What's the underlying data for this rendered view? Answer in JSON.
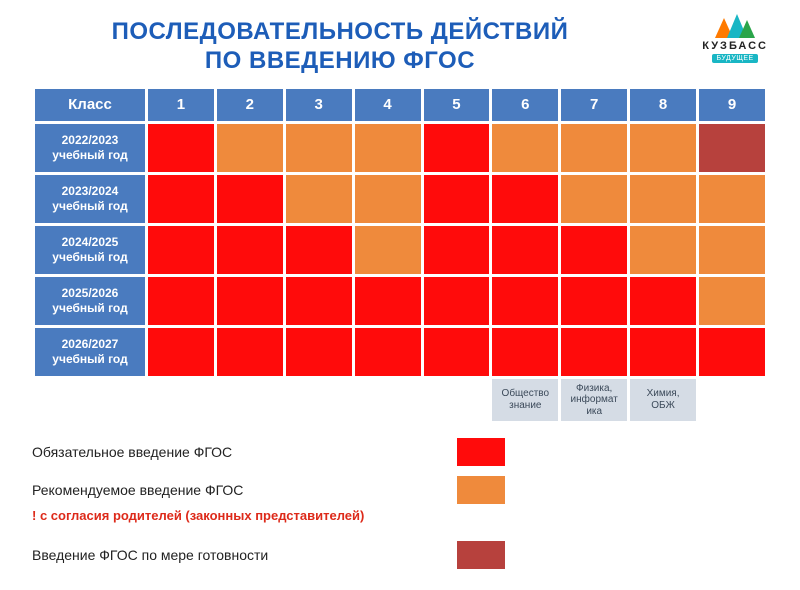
{
  "title_line1": "ПОСЛЕДОВАТЕЛЬНОСТЬ ДЕЙСТВИЙ",
  "title_line2": "ПО ВВЕДЕНИЮ ФГОС",
  "logo": {
    "brand": "КУЗБАСС",
    "tag": "БУДУЩЕЕ"
  },
  "colors": {
    "header_bg": "#4a7bbf",
    "mandatory": "#ff0b0b",
    "recommended": "#ef8a3c",
    "readiness": "#b7413d",
    "subnote_bg": "#d5dce5"
  },
  "table": {
    "header_first": "Класс",
    "grades": [
      "1",
      "2",
      "3",
      "4",
      "5",
      "6",
      "7",
      "8",
      "9"
    ],
    "rows": [
      {
        "label": "2022/2023\nучебный год",
        "cells": [
          "mandatory",
          "recommended",
          "recommended",
          "recommended",
          "mandatory",
          "recommended",
          "recommended",
          "recommended",
          "readiness"
        ]
      },
      {
        "label": "2023/2024\nучебный год",
        "cells": [
          "mandatory",
          "mandatory",
          "recommended",
          "recommended",
          "mandatory",
          "mandatory",
          "recommended",
          "recommended",
          "recommended"
        ]
      },
      {
        "label": "2024/2025\nучебный год",
        "cells": [
          "mandatory",
          "mandatory",
          "mandatory",
          "recommended",
          "mandatory",
          "mandatory",
          "mandatory",
          "recommended",
          "recommended"
        ]
      },
      {
        "label": "2025/2026\nучебный год",
        "cells": [
          "mandatory",
          "mandatory",
          "mandatory",
          "mandatory",
          "mandatory",
          "mandatory",
          "mandatory",
          "mandatory",
          "recommended"
        ]
      },
      {
        "label": "2026/2027\nучебный год",
        "cells": [
          "mandatory",
          "mandatory",
          "mandatory",
          "mandatory",
          "mandatory",
          "mandatory",
          "mandatory",
          "mandatory",
          "mandatory"
        ]
      }
    ],
    "subnotes": {
      "5": "Общество\nзнание",
      "6": "Физика,\nинформат\nика",
      "7": "Химия,\nОБЖ"
    }
  },
  "legend": {
    "mandatory": "Обязательное введение ФГОС",
    "recommended": "Рекомендуемое введение ФГОС",
    "parent_consent": "! с согласия родителей (законных представителей)",
    "readiness": "Введение ФГОС по мере готовности"
  }
}
